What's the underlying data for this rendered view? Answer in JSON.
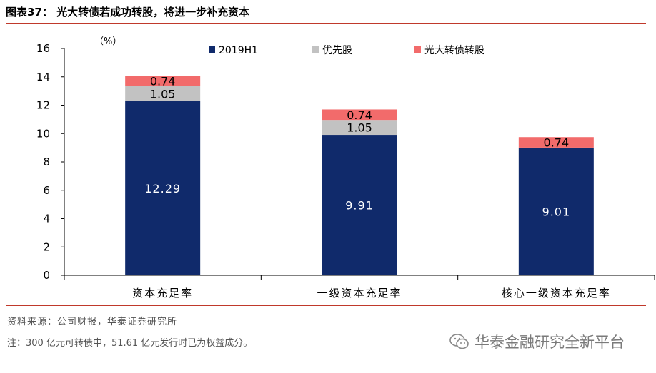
{
  "header": {
    "figure_title": "图表37：  光大转债若成功转股，将进一步补充资本"
  },
  "chart_data": {
    "type": "bar",
    "stacked": true,
    "unit_label": "（%）",
    "categories": [
      "资本充足率",
      "一级资本充足率",
      "核心一级资本充足率"
    ],
    "series": [
      {
        "name": "2019H1",
        "color": "#102a6b",
        "values": [
          12.29,
          9.91,
          9.01
        ],
        "labels": [
          "12.29",
          "9.91",
          "9.01"
        ]
      },
      {
        "name": "优先股",
        "color": "#c2c2c2",
        "values": [
          1.05,
          1.05,
          0
        ],
        "labels": [
          "1.05",
          "1.05",
          ""
        ]
      },
      {
        "name": "光大转债转股",
        "color": "#f26b6b",
        "values": [
          0.74,
          0.74,
          0.74
        ],
        "labels": [
          "0.74",
          "0.74",
          "0.74"
        ]
      }
    ],
    "ylim": [
      0,
      16
    ],
    "yticks": [
      "0",
      "2",
      "4",
      "6",
      "8",
      "10",
      "12",
      "14",
      "16"
    ],
    "legend_position": "top"
  },
  "footer": {
    "source": "资料来源：公司财报，华泰证券研究所",
    "note": "注：300 亿元可转债中，51.61 亿元发行时已为权益成分。",
    "watermark_text": "华泰金融研究全新平台"
  }
}
